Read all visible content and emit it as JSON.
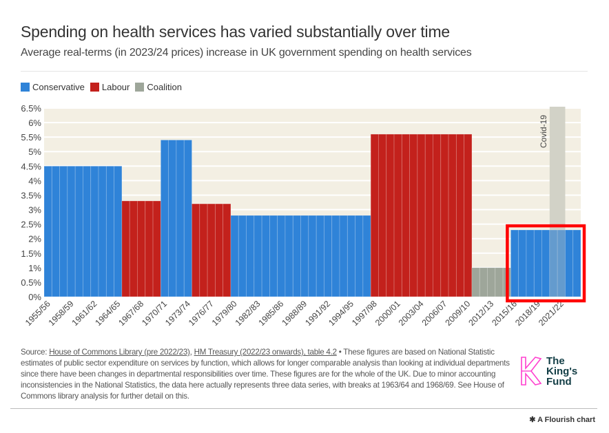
{
  "header": {
    "title": "Spending on health services has varied substantially over time",
    "subtitle": "Average real-terms (in 2023/24 prices) increase in UK government spending on health services"
  },
  "legend": [
    {
      "label": "Conservative",
      "color": "#2f83d8"
    },
    {
      "label": "Labour",
      "color": "#c3211c"
    },
    {
      "label": "Coalition",
      "color": "#9ea69a"
    }
  ],
  "chart_data": {
    "type": "bar",
    "first_year": "1955/56",
    "last_year": "2023/24",
    "periods": [
      {
        "from": "1955/56",
        "to": "1964/65",
        "party": "Conservative",
        "value": 4.5
      },
      {
        "from": "1965/66",
        "to": "1969/70",
        "party": "Labour",
        "value": 3.3
      },
      {
        "from": "1970/71",
        "to": "1973/74",
        "party": "Conservative",
        "value": 5.4
      },
      {
        "from": "1974/75",
        "to": "1978/79",
        "party": "Labour",
        "value": 3.2
      },
      {
        "from": "1979/80",
        "to": "1996/97",
        "party": "Conservative",
        "value": 2.8
      },
      {
        "from": "1997/98",
        "to": "2009/10",
        "party": "Labour",
        "value": 5.6
      },
      {
        "from": "2010/11",
        "to": "2014/15",
        "party": "Coalition",
        "value": 1.0
      },
      {
        "from": "2015/16",
        "to": "2023/24",
        "party": "Conservative",
        "value": 2.3
      }
    ],
    "x_tick_labels": [
      "1955/56",
      "1958/59",
      "1961/62",
      "1964/65",
      "1967/68",
      "1970/71",
      "1973/74",
      "1976/77",
      "1979/80",
      "1982/83",
      "1985/86",
      "1988/89",
      "1991/92",
      "1994/95",
      "1997/98",
      "2000/01",
      "2003/04",
      "2006/07",
      "2009/10",
      "2012/13",
      "2015/16",
      "2018/19",
      "2021/22"
    ],
    "y_ticks": [
      0,
      0.5,
      1,
      1.5,
      2,
      2.5,
      3,
      3.5,
      4,
      4.5,
      5,
      5.5,
      6,
      6.5
    ],
    "y_tick_suffix": "%",
    "ylim": [
      0,
      6.5
    ],
    "grid": true,
    "legend_position": "top-left",
    "plot_background": "#f3efe3",
    "annotation": {
      "label": "Covid-19",
      "from": "2020/21",
      "to": "2021/22"
    },
    "highlight": {
      "from": "2015/16",
      "to": "2023/24",
      "color": "#ff0000"
    }
  },
  "footer": {
    "source_prefix": "Source: ",
    "link1": "House of Commons Library (pre 2022/23)",
    "sep": ", ",
    "link2": "HM Treasury (2022/23 onwards), table 4.2",
    "note": " • These figures are based on National Statistic estimates of public sector expenditure on services by function, which allows for longer comparable analysis than looking at individual departments since there have been changes in departmental responsibilities over time. These figures are for the whole of the UK. Due to minor accounting inconsistencies in the National Statistics, the data here actually represents three data series, with breaks at 1963/64 and 1968/69. See House of Commons library analysis for further detail on this.",
    "logo_text": "The King's Fund",
    "logo_line1": "The",
    "logo_line2": "King's",
    "logo_line3": "Fund",
    "flourish": "A Flourish chart"
  }
}
